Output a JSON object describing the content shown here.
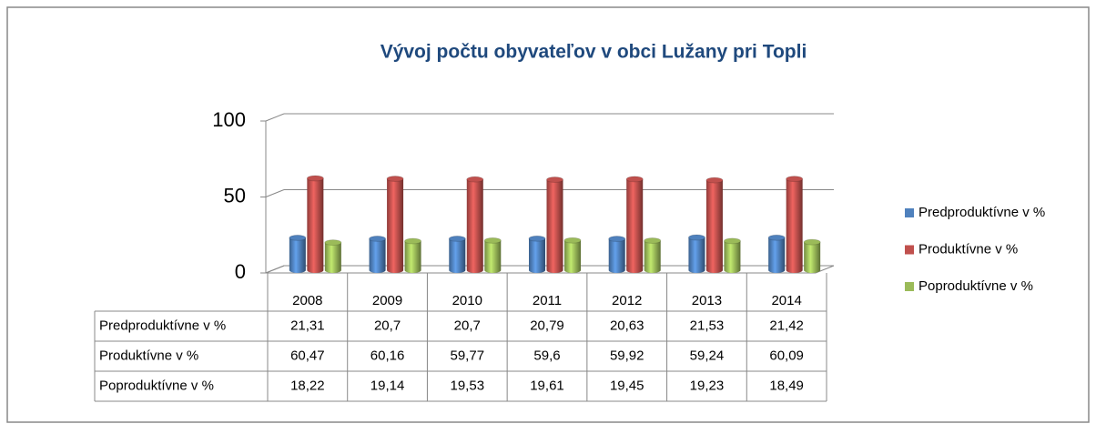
{
  "chart_data": {
    "type": "bar3d",
    "title": "Vývoj počtu obyvateľov v obci Lužany pri Topli",
    "categories": [
      "2008",
      "2009",
      "2010",
      "2011",
      "2012",
      "2013",
      "2014"
    ],
    "series": [
      {
        "name": "Predproduktívne v %",
        "color": "#4f81bd",
        "values": [
          21.31,
          20.7,
          20.7,
          20.79,
          20.63,
          21.53,
          21.42
        ],
        "value_labels": [
          "21,31",
          "20,7",
          "20,7",
          "20,79",
          "20,63",
          "21,53",
          "21,42"
        ]
      },
      {
        "name": "Produktívne v %",
        "color": "#c0504d",
        "values": [
          60.47,
          60.16,
          59.77,
          59.6,
          59.92,
          59.24,
          60.09
        ],
        "value_labels": [
          "60,47",
          "60,16",
          "59,77",
          "59,6",
          "59,92",
          "59,24",
          "60,09"
        ]
      },
      {
        "name": "Poproduktívne v %",
        "color": "#9bbb59",
        "values": [
          18.22,
          19.14,
          19.53,
          19.61,
          19.45,
          19.23,
          18.49
        ],
        "value_labels": [
          "18,22",
          "19,14",
          "19,53",
          "19,61",
          "19,45",
          "19,23",
          "18,49"
        ]
      }
    ],
    "ylim": [
      0,
      100
    ],
    "yticks": [
      0,
      50,
      100
    ],
    "grid": true,
    "legend": "right"
  }
}
